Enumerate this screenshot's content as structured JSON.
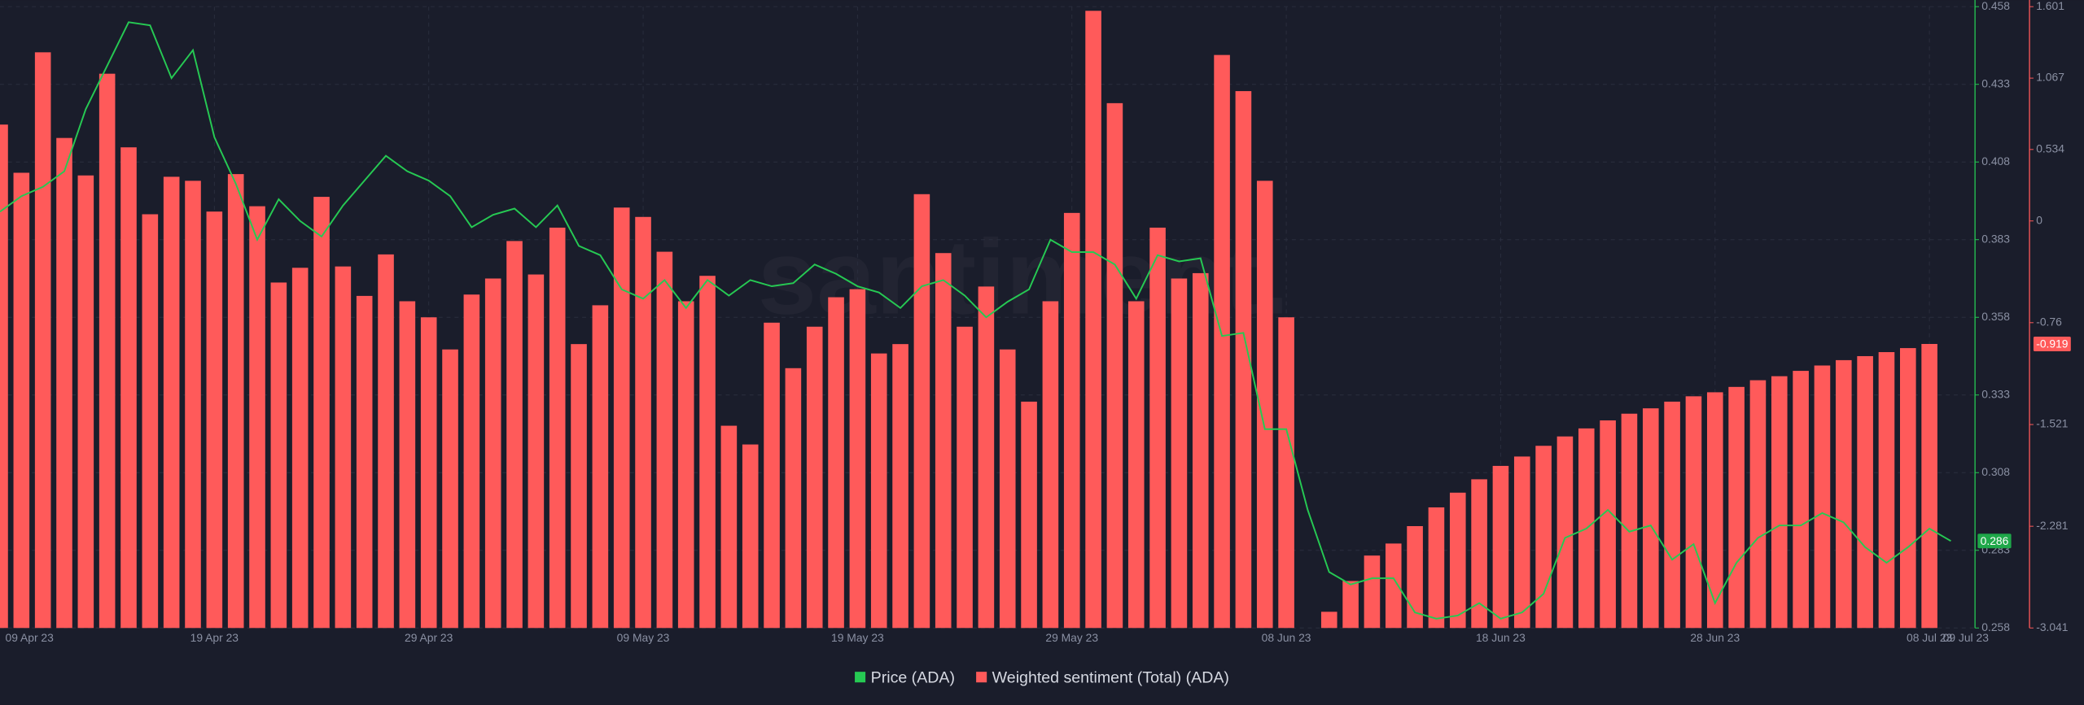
{
  "chart_data": {
    "type": "bar-line",
    "watermark": "santiment.",
    "categories": [
      "09 Apr 23",
      null,
      null,
      null,
      null,
      null,
      null,
      null,
      null,
      null,
      "19 Apr 23",
      null,
      null,
      null,
      null,
      null,
      null,
      null,
      null,
      null,
      "29 Apr 23",
      null,
      null,
      null,
      null,
      null,
      null,
      null,
      null,
      null,
      "09 May 23",
      null,
      null,
      null,
      null,
      null,
      null,
      null,
      null,
      null,
      "19 May 23",
      null,
      null,
      null,
      null,
      null,
      null,
      null,
      null,
      null,
      "29 May 23",
      null,
      null,
      null,
      null,
      null,
      null,
      null,
      null,
      null,
      "08 Jun 23",
      null,
      null,
      null,
      null,
      null,
      null,
      null,
      null,
      null,
      "18 Jun 23",
      null,
      null,
      null,
      null,
      null,
      null,
      null,
      null,
      null,
      "28 Jun 23",
      null,
      null,
      null,
      null,
      null,
      null,
      null,
      null,
      null,
      "08 Jul 23",
      "09 Jul 23"
    ],
    "series": [
      {
        "name": "Price (ADA)",
        "color": "#26c953",
        "type": "line",
        "axis": "y",
        "values": [
          0.392,
          0.397,
          0.4,
          0.405,
          0.425,
          0.439,
          0.453,
          0.452,
          0.435,
          0.444,
          0.416,
          0.401,
          0.383,
          0.396,
          0.389,
          0.384,
          0.394,
          0.402,
          0.41,
          0.405,
          0.402,
          0.397,
          0.387,
          0.391,
          0.393,
          0.387,
          0.394,
          0.381,
          0.378,
          0.367,
          0.364,
          0.37,
          0.361,
          0.37,
          0.365,
          0.37,
          0.368,
          0.369,
          0.375,
          0.372,
          0.368,
          0.366,
          0.361,
          0.368,
          0.37,
          0.365,
          0.358,
          0.363,
          0.367,
          0.383,
          0.379,
          0.379,
          0.375,
          0.364,
          0.378,
          0.376,
          0.377,
          0.352,
          0.353,
          0.322,
          0.322,
          0.296,
          0.276,
          0.272,
          0.274,
          0.274,
          0.263,
          0.261,
          0.262,
          0.266,
          0.261,
          0.263,
          0.269,
          0.287,
          0.29,
          0.296,
          0.289,
          0.291,
          0.28,
          0.285,
          0.266,
          0.279,
          0.287,
          0.291,
          0.291,
          0.295,
          0.292,
          0.284,
          0.279,
          0.284,
          0.29,
          0.286
        ]
      },
      {
        "name": "Weighted sentiment (Total) (ADA)",
        "color": "#ff5a5a",
        "type": "bar",
        "axis": "y2",
        "values": [
          0.72,
          0.36,
          1.26,
          0.62,
          0.34,
          1.1,
          0.55,
          0.05,
          0.33,
          0.3,
          0.07,
          0.35,
          0.11,
          -0.46,
          -0.35,
          0.18,
          -0.34,
          -0.56,
          -0.25,
          -0.6,
          -0.72,
          -0.96,
          -0.55,
          -0.43,
          -0.15,
          -0.4,
          -0.05,
          -0.92,
          -0.63,
          0.1,
          0.03,
          -0.23,
          -0.6,
          -0.41,
          -1.53,
          -1.67,
          -0.76,
          -1.1,
          -0.79,
          -0.57,
          -0.51,
          -0.99,
          -0.92,
          0.2,
          -0.24,
          -0.79,
          -0.49,
          -0.96,
          -1.35,
          -0.6,
          0.06,
          1.57,
          0.88,
          -0.6,
          -0.05,
          -0.43,
          -0.39,
          1.24,
          0.97,
          0.3,
          -0.72,
          null,
          -2.92,
          -2.69,
          -2.5,
          -2.41,
          -2.28,
          -2.14,
          -2.03,
          -1.93,
          -1.83,
          -1.76,
          -1.68,
          -1.61,
          -1.55,
          -1.49,
          -1.44,
          -1.4,
          -1.35,
          -1.31,
          -1.28,
          -1.24,
          -1.19,
          -1.16,
          -1.12,
          -1.08,
          -1.04,
          -1.01,
          -0.98,
          -0.95,
          -0.919,
          null
        ]
      }
    ],
    "ylim": [
      0.258,
      0.458
    ],
    "yticks": [
      0.458,
      0.433,
      0.408,
      0.383,
      0.358,
      0.333,
      0.308,
      0.283,
      0.258
    ],
    "y2lim": [
      -3.041,
      1.601
    ],
    "y2ticks": [
      1.601,
      1.067,
      0.534,
      0,
      -0.76,
      -1.521,
      -2.281,
      -3.041
    ],
    "grid": true,
    "legend": "bottom"
  }
}
